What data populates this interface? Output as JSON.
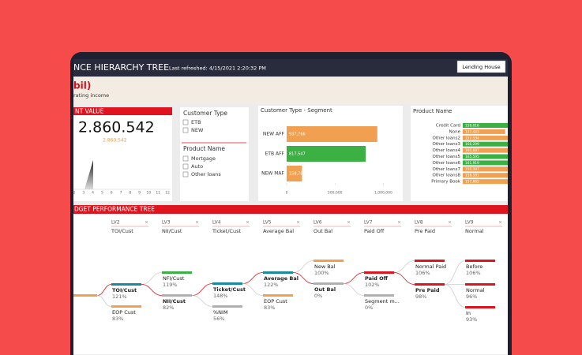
{
  "header": {
    "title": "NCE HIERARCHY TREE",
    "refreshed": "Last refreshed: 4/15/2021 2:20:32 PM",
    "button": "Lending House"
  },
  "banner": {
    "title": "bil)",
    "subtitle": "rating income"
  },
  "kpi": {
    "title": "NT VALUE",
    "value": "2.860.542",
    "subvalue": "2.860.542",
    "x_ticks": [
      2,
      3,
      4,
      5,
      6,
      7,
      8,
      9,
      10,
      11,
      12
    ]
  },
  "slicers": {
    "customer_type": {
      "title": "Customer Type",
      "options": [
        "ETB",
        "NEW"
      ]
    },
    "product_name": {
      "title": "Product Name",
      "options": [
        "Mortgage",
        "Auto",
        "Other loans"
      ]
    }
  },
  "segment_chart": {
    "type": "bar",
    "title": "Customer Type - Segment",
    "categories": [
      "NEW AFF",
      "ETB AFF",
      "NEW MAF"
    ],
    "values": [
      937766,
      817547,
      158781
    ],
    "value_labels": [
      "937,766",
      "817,547",
      "158,781"
    ],
    "colors": [
      "#f0a050",
      "#3cb043",
      "#f0a050"
    ],
    "xlim": [
      0,
      1160000
    ],
    "xticks": [
      0,
      {
        "value": 500000,
        "label": "500,000"
      },
      {
        "value": 1000000,
        "label": "1,000,000"
      }
    ]
  },
  "product_chart": {
    "type": "bar",
    "title": "Product Name",
    "categories": [
      "Credit Card",
      "None",
      "Other loans2",
      "Other loans3",
      "Other loans4",
      "Other loans5",
      "Other loans6",
      "Other loans7",
      "Other loans8",
      "Primary Book"
    ],
    "values": [
      159016,
      147443,
      157534,
      166299,
      160687,
      165595,
      161919,
      159297,
      158181,
      157882
    ],
    "value_labels": [
      "159,016",
      "147,443",
      "157,534",
      "166,299",
      "160,687",
      "165,595",
      "161,919",
      "159,297",
      "158,181",
      "157,882"
    ],
    "colors": [
      "#3cb043",
      "#f0a050",
      "#f0a050",
      "#3cb043",
      "#f0a050",
      "#3cb043",
      "#3cb043",
      "#f0a050",
      "#f0a050",
      "#f0a050"
    ],
    "xlim": [
      0,
      170000
    ]
  },
  "tree": {
    "title": "DGET PERFORMANCE TREE",
    "levels": [
      {
        "name": "LV2",
        "label": "TOI/Cust"
      },
      {
        "name": "LV3",
        "label": "NII/Cust"
      },
      {
        "name": "LV4",
        "label": "Ticket/Cust"
      },
      {
        "name": "LV5",
        "label": "Average Bal"
      },
      {
        "name": "LV6",
        "label": "Out Bal"
      },
      {
        "name": "LV7",
        "label": "Paid Off"
      },
      {
        "name": "LV8",
        "label": "Pre Paid"
      },
      {
        "name": "LV9",
        "label": "Normal"
      }
    ],
    "nodes": [
      {
        "label": "TOI/Cust",
        "value": "121%",
        "color": "#1a8a9e"
      },
      {
        "label": "EOP Cust",
        "value": "83%",
        "color": "#f0a050"
      },
      {
        "label": "NFI/Cust",
        "value": "119%",
        "color": "#3cb043"
      },
      {
        "label": "NII/Cust",
        "value": "82%",
        "color": "#b0b0b0"
      },
      {
        "label": "Ticket/Cust",
        "value": "148%",
        "color": "#1a8a9e"
      },
      {
        "label": "%NIM",
        "value": "56%",
        "color": "#b0b0b0"
      },
      {
        "label": "Average Bal",
        "value": "122%",
        "color": "#1a8a9e"
      },
      {
        "label": "EOP Cust",
        "value": "83%",
        "color": "#f0a050"
      },
      {
        "label": "New Bal",
        "value": "100%",
        "color": "#f0a050"
      },
      {
        "label": "Out Bal",
        "value": "0%",
        "color": "#b0b0b0"
      },
      {
        "label": "Paid Off",
        "value": "102%",
        "color": "#e0141e"
      },
      {
        "label": "Segment m...",
        "value": "0%",
        "color": "#b0b0b0"
      },
      {
        "label": "Normal Paid",
        "value": "106%",
        "color": "#e0141e"
      },
      {
        "label": "Pre Paid",
        "value": "98%",
        "color": "#e0141e"
      },
      {
        "label": "Before",
        "value": "106%",
        "color": "#e0141e"
      },
      {
        "label": "Normal",
        "value": "96%",
        "color": "#e0141e"
      },
      {
        "label": "In",
        "value": "93%",
        "color": "#e0141e"
      }
    ]
  }
}
